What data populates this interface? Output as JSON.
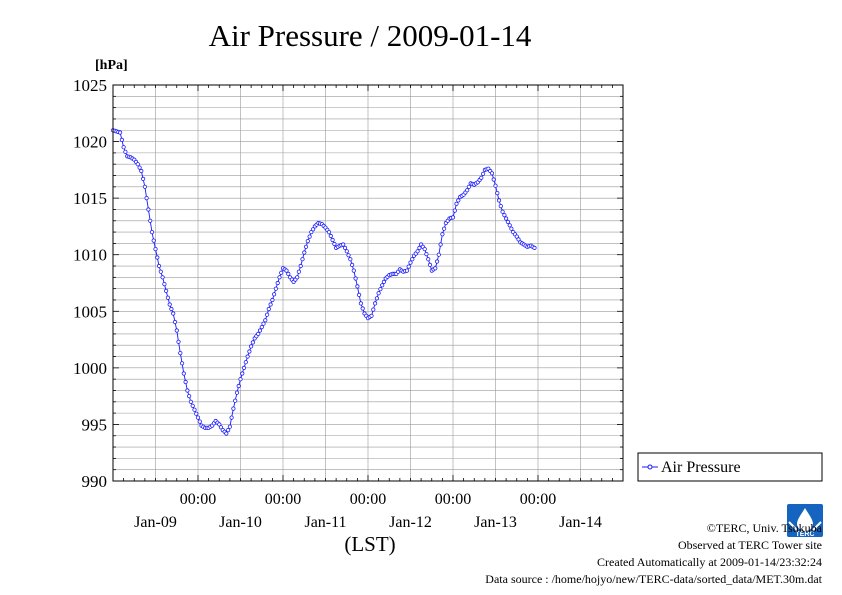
{
  "chart_data": {
    "type": "line",
    "title": "Air Pressure / 2009-01-14",
    "ylabel": "[hPa]",
    "xlabel": "(LST)",
    "ylim": [
      990,
      1025
    ],
    "yticks": [
      990,
      995,
      1000,
      1005,
      1010,
      1015,
      1020,
      1025
    ],
    "xlim": [
      0,
      144
    ],
    "time_ticks": [
      {
        "hour": 24,
        "label": "00:00"
      },
      {
        "hour": 48,
        "label": "00:00"
      },
      {
        "hour": 72,
        "label": "00:00"
      },
      {
        "hour": 96,
        "label": "00:00"
      },
      {
        "hour": 120,
        "label": "00:00"
      }
    ],
    "date_labels": [
      {
        "hour": 12,
        "label": "Jan-09"
      },
      {
        "hour": 36,
        "label": "Jan-10"
      },
      {
        "hour": 60,
        "label": "Jan-11"
      },
      {
        "hour": 84,
        "label": "Jan-12"
      },
      {
        "hour": 108,
        "label": "Jan-13"
      },
      {
        "hour": 132,
        "label": "Jan-14"
      }
    ],
    "grid": true,
    "legend_position": "right",
    "series": [
      {
        "name": "Air Pressure",
        "color": "#1a1aff",
        "points": [
          [
            0,
            1021.0
          ],
          [
            2,
            1020.8
          ],
          [
            3,
            1019.5
          ],
          [
            4,
            1018.7
          ],
          [
            5,
            1018.6
          ],
          [
            6,
            1018.4
          ],
          [
            7,
            1018.0
          ],
          [
            8,
            1017.4
          ],
          [
            9,
            1016.0
          ],
          [
            10,
            1014.0
          ],
          [
            11,
            1012.0
          ],
          [
            12,
            1010.5
          ],
          [
            13,
            1009.0
          ],
          [
            14,
            1008.0
          ],
          [
            15,
            1006.8
          ],
          [
            16,
            1005.6
          ],
          [
            17,
            1004.8
          ],
          [
            18,
            1003.3
          ],
          [
            19,
            1001.3
          ],
          [
            20,
            999.5
          ],
          [
            21,
            998.0
          ],
          [
            22,
            997.0
          ],
          [
            23,
            996.3
          ],
          [
            24,
            995.6
          ],
          [
            25,
            994.9
          ],
          [
            26,
            994.7
          ],
          [
            27,
            994.7
          ],
          [
            28,
            994.9
          ],
          [
            29,
            995.3
          ],
          [
            30,
            995.0
          ],
          [
            31,
            994.5
          ],
          [
            32,
            994.2
          ],
          [
            33,
            994.8
          ],
          [
            34,
            996.4
          ],
          [
            35,
            997.8
          ],
          [
            36,
            999.0
          ],
          [
            37,
            1000.0
          ],
          [
            38,
            1001.0
          ],
          [
            39,
            1001.9
          ],
          [
            40,
            1002.6
          ],
          [
            41,
            1003.0
          ],
          [
            42,
            1003.6
          ],
          [
            43,
            1004.2
          ],
          [
            44,
            1005.2
          ],
          [
            45,
            1006.0
          ],
          [
            46,
            1007.0
          ],
          [
            47,
            1008.0
          ],
          [
            48,
            1008.8
          ],
          [
            49,
            1008.6
          ],
          [
            50,
            1008.0
          ],
          [
            51,
            1007.6
          ],
          [
            52,
            1008.0
          ],
          [
            53,
            1009.0
          ],
          [
            54,
            1010.2
          ],
          [
            55,
            1011.2
          ],
          [
            56,
            1012.0
          ],
          [
            57,
            1012.5
          ],
          [
            58,
            1012.8
          ],
          [
            59,
            1012.7
          ],
          [
            60,
            1012.4
          ],
          [
            61,
            1012.0
          ],
          [
            62,
            1011.3
          ],
          [
            63,
            1010.6
          ],
          [
            64,
            1010.8
          ],
          [
            65,
            1010.9
          ],
          [
            66,
            1010.3
          ],
          [
            67,
            1009.6
          ],
          [
            68,
            1008.6
          ],
          [
            69,
            1007.2
          ],
          [
            70,
            1005.7
          ],
          [
            71,
            1004.8
          ],
          [
            72,
            1004.4
          ],
          [
            73,
            1004.6
          ],
          [
            74,
            1005.7
          ],
          [
            75,
            1006.6
          ],
          [
            76,
            1007.3
          ],
          [
            77,
            1007.9
          ],
          [
            78,
            1008.2
          ],
          [
            79,
            1008.3
          ],
          [
            80,
            1008.3
          ],
          [
            81,
            1008.7
          ],
          [
            82,
            1008.5
          ],
          [
            83,
            1008.6
          ],
          [
            84,
            1009.3
          ],
          [
            85,
            1009.9
          ],
          [
            86,
            1010.3
          ],
          [
            87,
            1010.9
          ],
          [
            88,
            1010.5
          ],
          [
            89,
            1009.6
          ],
          [
            90,
            1008.6
          ],
          [
            91,
            1008.8
          ],
          [
            92,
            1010.0
          ],
          [
            93,
            1011.8
          ],
          [
            94,
            1012.8
          ],
          [
            95,
            1013.2
          ],
          [
            96,
            1013.3
          ],
          [
            97,
            1014.5
          ],
          [
            98,
            1015.1
          ],
          [
            99,
            1015.3
          ],
          [
            100,
            1015.7
          ],
          [
            101,
            1016.3
          ],
          [
            102,
            1016.2
          ],
          [
            103,
            1016.4
          ],
          [
            104,
            1016.8
          ],
          [
            105,
            1017.5
          ],
          [
            106,
            1017.6
          ],
          [
            107,
            1017.2
          ],
          [
            108,
            1016.1
          ],
          [
            109,
            1014.8
          ],
          [
            110,
            1013.8
          ],
          [
            111,
            1013.2
          ],
          [
            112,
            1012.6
          ],
          [
            113,
            1012.0
          ],
          [
            114,
            1011.6
          ],
          [
            115,
            1011.1
          ],
          [
            116,
            1010.9
          ],
          [
            117,
            1010.7
          ],
          [
            118,
            1010.8
          ],
          [
            119,
            1010.6
          ]
        ]
      }
    ]
  },
  "footer": {
    "copyright": "©TERC, Univ. Tsukuba",
    "observed": "Observed at TERC Tower site",
    "created": "Created Automatically at 2009-01-14/23:32:24",
    "source": "Data source : /home/hojyo/new/TERC-data/sorted_data/MET.30m.dat"
  },
  "logo": {
    "name": "terc-logo-icon",
    "text": "TERC",
    "color": "#1565c0"
  }
}
